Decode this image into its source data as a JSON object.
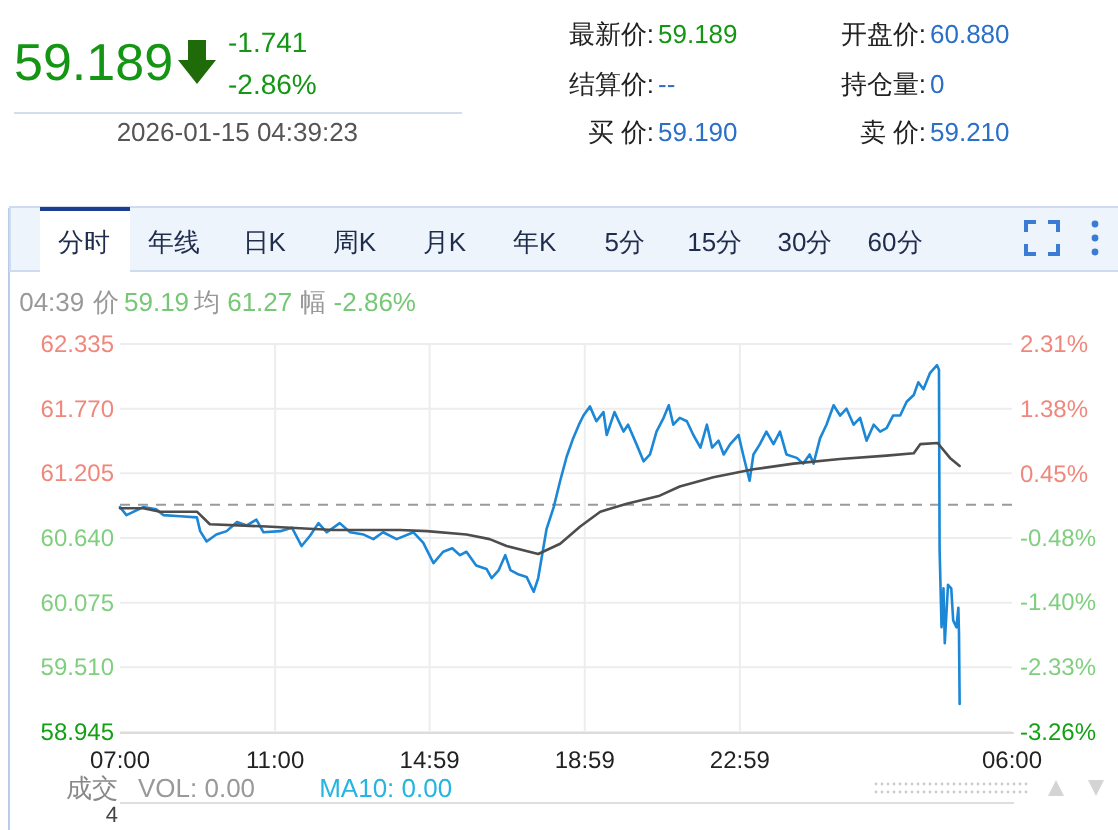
{
  "chart_data": {
    "type": "line",
    "xlim": [
      "2026-01-14T07:00",
      "2026-01-15T06:00"
    ],
    "xticks": [
      {
        "value": "2026-01-14T07:00",
        "label": "07:00"
      },
      {
        "value": "2026-01-14T11:00",
        "label": "11:00"
      },
      {
        "value": "2026-01-14T14:59",
        "label": "14:59"
      },
      {
        "value": "2026-01-14T18:59",
        "label": "18:59"
      },
      {
        "value": "2026-01-14T22:59",
        "label": "22:59"
      },
      {
        "value": "2026-01-15T06:00",
        "label": "06:00"
      }
    ],
    "ylim": [
      58.945,
      62.335
    ],
    "yticks": [
      {
        "value": 58.945,
        "label": "58.945"
      },
      {
        "value": 59.51,
        "label": "59.510"
      },
      {
        "value": 60.075,
        "label": "60.075"
      },
      {
        "value": 60.64,
        "label": "60.640"
      },
      {
        "value": 61.205,
        "label": "61.205"
      },
      {
        "value": 61.77,
        "label": "61.770"
      },
      {
        "value": 62.335,
        "label": "62.335"
      }
    ],
    "y2lim": [
      -3.26,
      2.31
    ],
    "y2ticks": [
      {
        "value": -3.26,
        "label": "-3.26%"
      },
      {
        "value": -2.33,
        "label": "-2.33%"
      },
      {
        "value": -1.4,
        "label": "-1.40%"
      },
      {
        "value": -0.48,
        "label": "-0.48%"
      },
      {
        "value": 0.45,
        "label": "0.45%"
      },
      {
        "value": 1.38,
        "label": "1.38%"
      },
      {
        "value": 2.31,
        "label": "2.31%"
      }
    ],
    "grid": true,
    "ref_lines": [
      {
        "axis": "y",
        "value": 60.93,
        "color": "#9a9a9a",
        "line_style": "dashed"
      }
    ],
    "series": [
      {
        "color": "#1b87d6",
        "x": [
          "2026-01-14T07:00",
          "2026-01-14T07:10",
          "2026-01-14T07:36",
          "2026-01-14T07:56",
          "2026-01-14T08:07",
          "2026-01-14T08:33",
          "2026-01-14T08:59",
          "2026-01-14T09:04",
          "2026-01-14T09:14",
          "2026-01-14T09:29",
          "2026-01-14T09:45",
          "2026-01-14T10:01",
          "2026-01-14T10:16",
          "2026-01-14T10:31",
          "2026-01-14T10:42",
          "2026-01-14T11:08",
          "2026-01-14T11:26",
          "2026-01-14T11:41",
          "2026-01-14T11:54",
          "2026-01-14T12:07",
          "2026-01-14T12:20",
          "2026-01-14T12:40",
          "2026-01-14T12:56",
          "2026-01-14T13:17",
          "2026-01-14T13:32",
          "2026-01-14T13:47",
          "2026-01-14T14:08",
          "2026-01-14T14:34",
          "2026-01-14T14:49",
          "2026-01-14T15:05",
          "2026-01-14T15:20",
          "2026-01-14T15:34",
          "2026-01-14T15:46",
          "2026-01-14T15:56",
          "2026-01-14T16:11",
          "2026-01-14T16:27",
          "2026-01-14T16:35",
          "2026-01-14T16:46",
          "2026-01-14T16:56",
          "2026-01-14T17:04",
          "2026-01-14T17:17",
          "2026-01-14T17:29",
          "2026-01-14T17:40",
          "2026-01-14T17:47",
          "2026-01-14T18:00",
          "2026-01-14T18:11",
          "2026-01-14T18:21",
          "2026-01-14T18:31",
          "2026-01-14T18:41",
          "2026-01-14T18:50",
          "2026-01-14T18:57",
          "2026-01-14T19:07",
          "2026-01-14T19:17",
          "2026-01-14T19:28",
          "2026-01-14T19:33",
          "2026-01-14T19:45",
          "2026-01-14T19:59",
          "2026-01-14T20:06",
          "2026-01-14T20:19",
          "2026-01-14T20:30",
          "2026-01-14T20:40",
          "2026-01-14T20:50",
          "2026-01-14T21:01",
          "2026-01-14T21:09",
          "2026-01-14T21:16",
          "2026-01-14T21:26",
          "2026-01-14T21:37",
          "2026-01-14T21:47",
          "2026-01-14T21:58",
          "2026-01-14T22:08",
          "2026-01-14T22:16",
          "2026-01-14T22:26",
          "2026-01-14T22:34",
          "2026-01-14T22:44",
          "2026-01-14T22:57",
          "2026-01-14T23:04",
          "2026-01-14T23:14",
          "2026-01-14T23:20",
          "2026-01-14T23:30",
          "2026-01-14T23:40",
          "2026-01-14T23:51",
          "2026-01-15T00:01",
          "2026-01-15T00:11",
          "2026-01-15T00:27",
          "2026-01-15T00:37",
          "2026-01-15T00:47",
          "2026-01-15T00:53",
          "2026-01-15T01:03",
          "2026-01-15T01:13",
          "2026-01-15T01:24",
          "2026-01-15T01:34",
          "2026-01-15T01:44",
          "2026-01-15T01:55",
          "2026-01-15T02:05",
          "2026-01-15T02:15",
          "2026-01-15T02:26",
          "2026-01-15T02:36",
          "2026-01-15T02:46",
          "2026-01-15T02:56",
          "2026-01-15T03:07",
          "2026-01-15T03:17",
          "2026-01-15T03:28",
          "2026-01-15T03:35",
          "2026-01-15T03:43",
          "2026-01-15T03:53",
          "2026-01-15T04:04",
          "2026-01-15T04:07",
          "2026-01-15T04:08",
          "2026-01-15T04:11",
          "2026-01-15T04:14",
          "2026-01-15T04:16",
          "2026-01-15T04:21",
          "2026-01-15T04:26",
          "2026-01-15T04:29",
          "2026-01-15T04:34",
          "2026-01-15T04:37",
          "2026-01-15T04:38",
          "2026-01-15T04:39"
        ],
        "values": [
          60.91,
          60.84,
          60.91,
          60.89,
          60.84,
          60.83,
          60.82,
          60.7,
          60.61,
          60.67,
          60.7,
          60.78,
          60.75,
          60.8,
          60.69,
          60.7,
          60.73,
          60.57,
          60.66,
          60.77,
          60.69,
          60.77,
          60.69,
          60.67,
          60.63,
          60.69,
          60.63,
          60.69,
          60.6,
          60.42,
          60.52,
          60.55,
          60.49,
          60.52,
          60.4,
          60.37,
          60.29,
          60.36,
          60.49,
          60.36,
          60.32,
          60.3,
          60.17,
          60.29,
          60.72,
          60.91,
          61.14,
          61.35,
          61.51,
          61.63,
          61.71,
          61.79,
          61.66,
          61.74,
          61.54,
          61.74,
          61.57,
          61.63,
          61.46,
          61.31,
          61.37,
          61.57,
          61.69,
          61.8,
          61.63,
          61.69,
          61.66,
          61.54,
          61.43,
          61.63,
          61.43,
          61.49,
          61.37,
          61.46,
          61.54,
          61.37,
          61.14,
          61.37,
          61.46,
          61.57,
          61.46,
          61.57,
          61.37,
          61.34,
          61.29,
          61.37,
          61.29,
          61.51,
          61.63,
          61.8,
          61.71,
          61.77,
          61.63,
          61.69,
          61.49,
          61.63,
          61.57,
          61.6,
          61.71,
          61.71,
          61.83,
          61.89,
          62.0,
          61.94,
          62.08,
          62.15,
          62.11,
          60.54,
          59.86,
          60.2,
          59.72,
          60.23,
          60.2,
          59.92,
          59.86,
          60.03,
          59.8,
          59.19
        ]
      },
      {
        "color": "#4d4d4d",
        "x": [
          "2026-01-14T07:00",
          "2026-01-14T07:36",
          "2026-01-14T08:02",
          "2026-01-14T08:59",
          "2026-01-14T09:19",
          "2026-01-14T10:47",
          "2026-01-14T12:30",
          "2026-01-14T14:13",
          "2026-01-14T14:55",
          "2026-01-14T15:56",
          "2026-01-14T16:32",
          "2026-01-14T16:58",
          "2026-01-14T17:47",
          "2026-01-14T18:21",
          "2026-01-14T18:52",
          "2026-01-14T19:23",
          "2026-01-14T20:04",
          "2026-01-14T20:55",
          "2026-01-14T21:26",
          "2026-01-14T22:18",
          "2026-01-14T23:20",
          "2026-01-15T00:22",
          "2026-01-15T01:34",
          "2026-01-15T02:46",
          "2026-01-15T03:28",
          "2026-01-15T03:38",
          "2026-01-15T04:05",
          "2026-01-15T04:24",
          "2026-01-15T04:39"
        ],
        "values": [
          60.9,
          60.9,
          60.87,
          60.87,
          60.76,
          60.74,
          60.71,
          60.71,
          60.7,
          60.67,
          60.63,
          60.57,
          60.5,
          60.59,
          60.74,
          60.87,
          60.94,
          61.01,
          61.09,
          61.17,
          61.24,
          61.29,
          61.33,
          61.36,
          61.38,
          61.46,
          61.47,
          61.34,
          61.27
        ]
      }
    ],
    "annotations": [
      "59.189",
      "-1.741",
      "-2.86%",
      "2026-01-15 04:39:23",
      "最新价:",
      "59.189",
      "结算价:",
      "--",
      "买 价:",
      "59.190",
      "开盘价:",
      "60.880",
      "持仓量:",
      "0",
      "卖 价:",
      "59.210",
      "分时",
      "年线",
      "日K",
      "周K",
      "月K",
      "年K",
      "5分",
      "15分",
      "30分",
      "60分",
      "04:39",
      "价",
      "59.19",
      "均",
      "61.27",
      "幅",
      "-2.86%",
      "成交",
      "VOL: 0.00",
      "MA10: 0.00",
      "4"
    ]
  }
}
